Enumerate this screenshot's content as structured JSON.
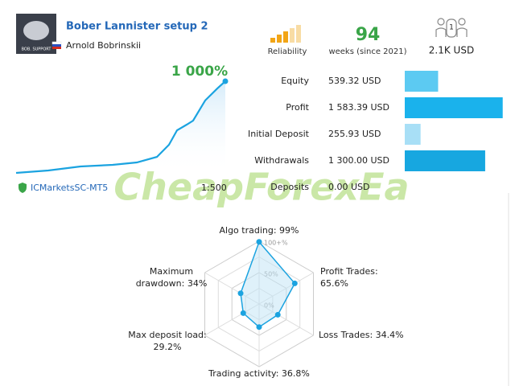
{
  "header": {
    "title": "Bober Lannister setup 2",
    "author": "Arnold Bobrinskii",
    "logo_text": "BOB. SUPPORT"
  },
  "stats": {
    "reliability_label": "Reliability",
    "weeks": 94,
    "weeks_label": "weeks (since 2021)",
    "subscribers": 1,
    "funds": "2.1K USD"
  },
  "growth": {
    "label": "1 000%",
    "x": [
      0,
      40,
      80,
      120,
      150,
      175,
      190,
      200,
      212,
      220,
      235,
      250,
      260
    ],
    "values": [
      0,
      26,
      70,
      88,
      114,
      175,
      307,
      465,
      526,
      570,
      790,
      920,
      1000
    ],
    "ylim": [
      0,
      1000
    ],
    "xlim": [
      0,
      260
    ],
    "color": "#1ba3e0"
  },
  "account": {
    "xlim": [
      0,
      1600
    ],
    "rows": [
      {
        "label": "Equity",
        "value": 539.32,
        "value_label": "539.32 USD",
        "color": "#5ccaf2"
      },
      {
        "label": "Profit",
        "value": 1583.39,
        "value_label": "1 583.39 USD",
        "color": "#1ab2ec"
      },
      {
        "label": "Initial Deposit",
        "value": 255.93,
        "value_label": "255.93 USD",
        "color": "#a8dff6"
      },
      {
        "label": "Withdrawals",
        "value": 1300.0,
        "value_label": "1 300.00 USD",
        "color": "#17a7e0"
      },
      {
        "label": "Deposits",
        "value": 0.0,
        "value_label": "0.00 USD",
        "color": "#17a7e0"
      }
    ]
  },
  "broker": "ICMarketsSC-MT5",
  "leverage": "1:500",
  "radar": {
    "rlim": [
      0,
      100
    ],
    "rticks": [
      {
        "value": 0,
        "label": "0%"
      },
      {
        "value": 50,
        "label": "50%"
      },
      {
        "value": 100,
        "label": "100+%"
      }
    ],
    "color": "#1ba3e0",
    "axes": [
      {
        "label": [
          "Algo trading: 99%"
        ],
        "value": 99
      },
      {
        "label": [
          "Profit Trades:",
          "65.6%"
        ],
        "value": 65.6
      },
      {
        "label": [
          "Loss Trades: 34.4%"
        ],
        "value": 34.4
      },
      {
        "label": [
          "Trading activity: 36.8%"
        ],
        "value": 36.8
      },
      {
        "label": [
          "Max deposit load:",
          "29.2%"
        ],
        "value": 29.2
      },
      {
        "label": [
          "Maximum",
          "drawdown: 34%"
        ],
        "value": 34
      }
    ]
  },
  "watermark": "CheapForexEa"
}
